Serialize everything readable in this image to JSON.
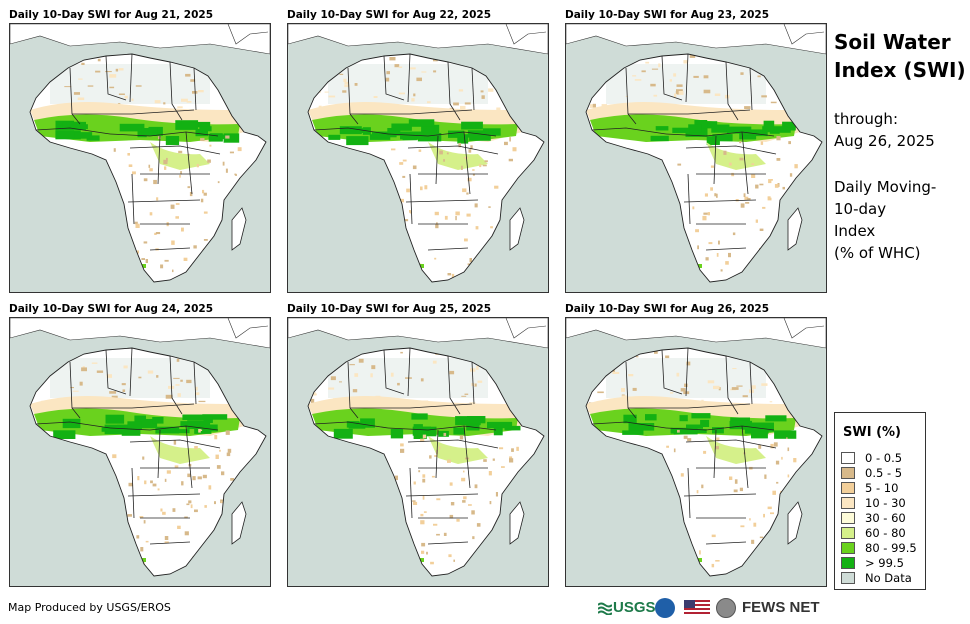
{
  "panels": [
    {
      "title": "Daily 10-Day SWI for Aug 21, 2025"
    },
    {
      "title": "Daily 10-Day SWI for Aug 22, 2025"
    },
    {
      "title": "Daily 10-Day SWI for Aug 23, 2025"
    },
    {
      "title": "Daily 10-Day SWI for Aug 24, 2025"
    },
    {
      "title": "Daily 10-Day SWI for Aug 25, 2025"
    },
    {
      "title": "Daily 10-Day SWI for Aug 26, 2025"
    }
  ],
  "side": {
    "title_line1": "Soil Water",
    "title_line2": "Index (SWI)",
    "through_label": "through:",
    "through_date": "Aug 26, 2025",
    "desc_line1": "Daily Moving-",
    "desc_line2": "10-day",
    "desc_line3": "Index",
    "desc_line4": "(% of WHC)"
  },
  "legend": {
    "title": "SWI (%)",
    "items": [
      {
        "label": "0 - 0.5",
        "color": "#ffffff"
      },
      {
        "label": "0.5 - 5",
        "color": "#d7b98a"
      },
      {
        "label": "5 - 10",
        "color": "#f2cf9a"
      },
      {
        "label": "10 - 30",
        "color": "#fbe6c2"
      },
      {
        "label": "30 - 60",
        "color": "#fefcd9"
      },
      {
        "label": "60 - 80",
        "color": "#d5f08a"
      },
      {
        "label": "80 - 99.5",
        "color": "#6ad21e"
      },
      {
        "label": "> 99.5",
        "color": "#13b113"
      },
      {
        "label": "No Data",
        "color": "#cfdcd7"
      }
    ]
  },
  "footer": {
    "credit": "Map Produced by USGS/EROS",
    "usgs_logo": "USGS",
    "fews_logo": "FEWS NET"
  },
  "icons": [
    "usgs-logo",
    "noaa-logo-icon",
    "us-flag-icon",
    "usaid-seal-icon"
  ]
}
